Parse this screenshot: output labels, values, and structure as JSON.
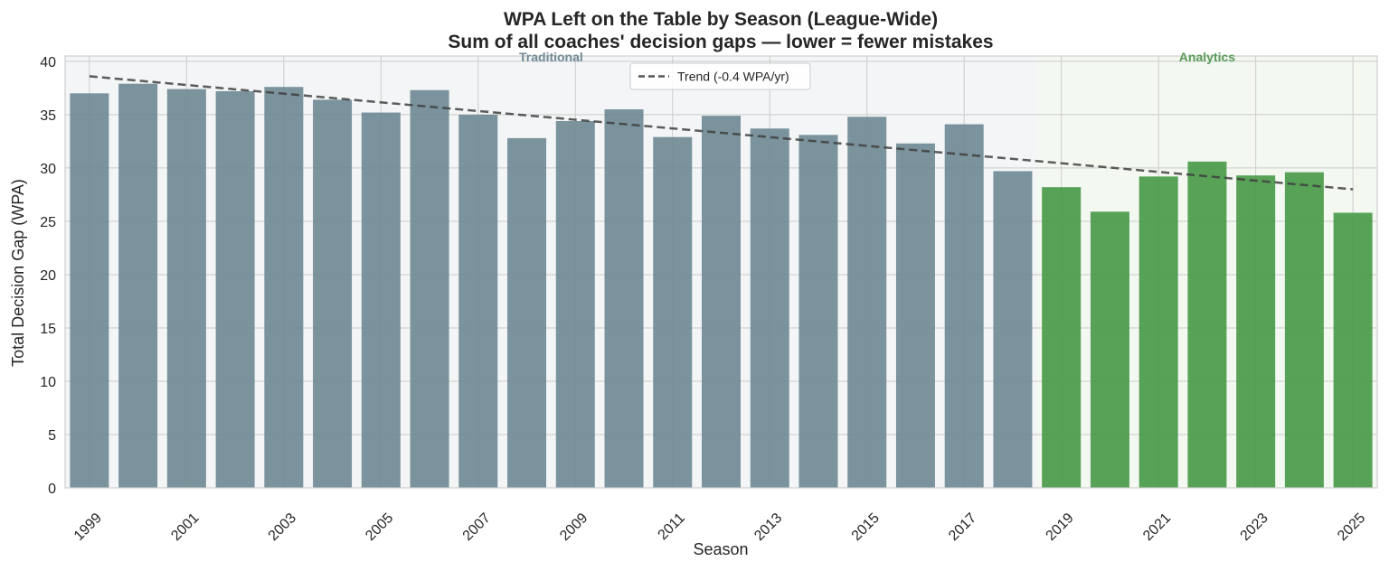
{
  "chart_data": {
    "type": "bar",
    "title": "WPA Left on the Table by Season (League-Wide)",
    "subtitle": "Sum of all coaches' decision gaps — lower = fewer mistakes",
    "xlabel": "Season",
    "ylabel": "Total Decision Gap (WPA)",
    "ylim": [
      0,
      40.5
    ],
    "yticks": [
      0,
      5,
      10,
      15,
      20,
      25,
      30,
      35,
      40
    ],
    "xtick_labels": [
      "1999",
      "2001",
      "2003",
      "2005",
      "2007",
      "2009",
      "2011",
      "2013",
      "2015",
      "2017",
      "2019",
      "2021",
      "2023",
      "2025"
    ],
    "grid": true,
    "categories": [
      1999,
      2000,
      2001,
      2002,
      2003,
      2004,
      2005,
      2006,
      2007,
      2008,
      2009,
      2010,
      2011,
      2012,
      2013,
      2014,
      2015,
      2016,
      2017,
      2018,
      2019,
      2020,
      2021,
      2022,
      2023,
      2024,
      2025
    ],
    "values": [
      37.0,
      37.9,
      37.4,
      37.2,
      37.6,
      36.4,
      35.2,
      37.3,
      35.0,
      32.8,
      34.4,
      35.5,
      32.9,
      34.9,
      33.7,
      33.1,
      34.8,
      32.3,
      34.1,
      29.7,
      28.2,
      25.9,
      29.2,
      30.6,
      29.3,
      29.6,
      25.8
    ],
    "regions": [
      {
        "label": "Traditional",
        "start": 1999,
        "end": 2018,
        "bar_color": "#708a94",
        "shade_color": "#dde1e6",
        "label_color": "#708a94"
      },
      {
        "label": "Analytics",
        "start": 2019,
        "end": 2025,
        "bar_color": "#4a9a4a",
        "shade_color": "#dcebd8",
        "label_color": "#5a9a5a"
      }
    ],
    "trend": {
      "label": "Trend (-0.4 WPA/yr)",
      "start_value": 38.6,
      "end_value": 28.0,
      "color": "#404040"
    },
    "legend_position": "top-center"
  }
}
